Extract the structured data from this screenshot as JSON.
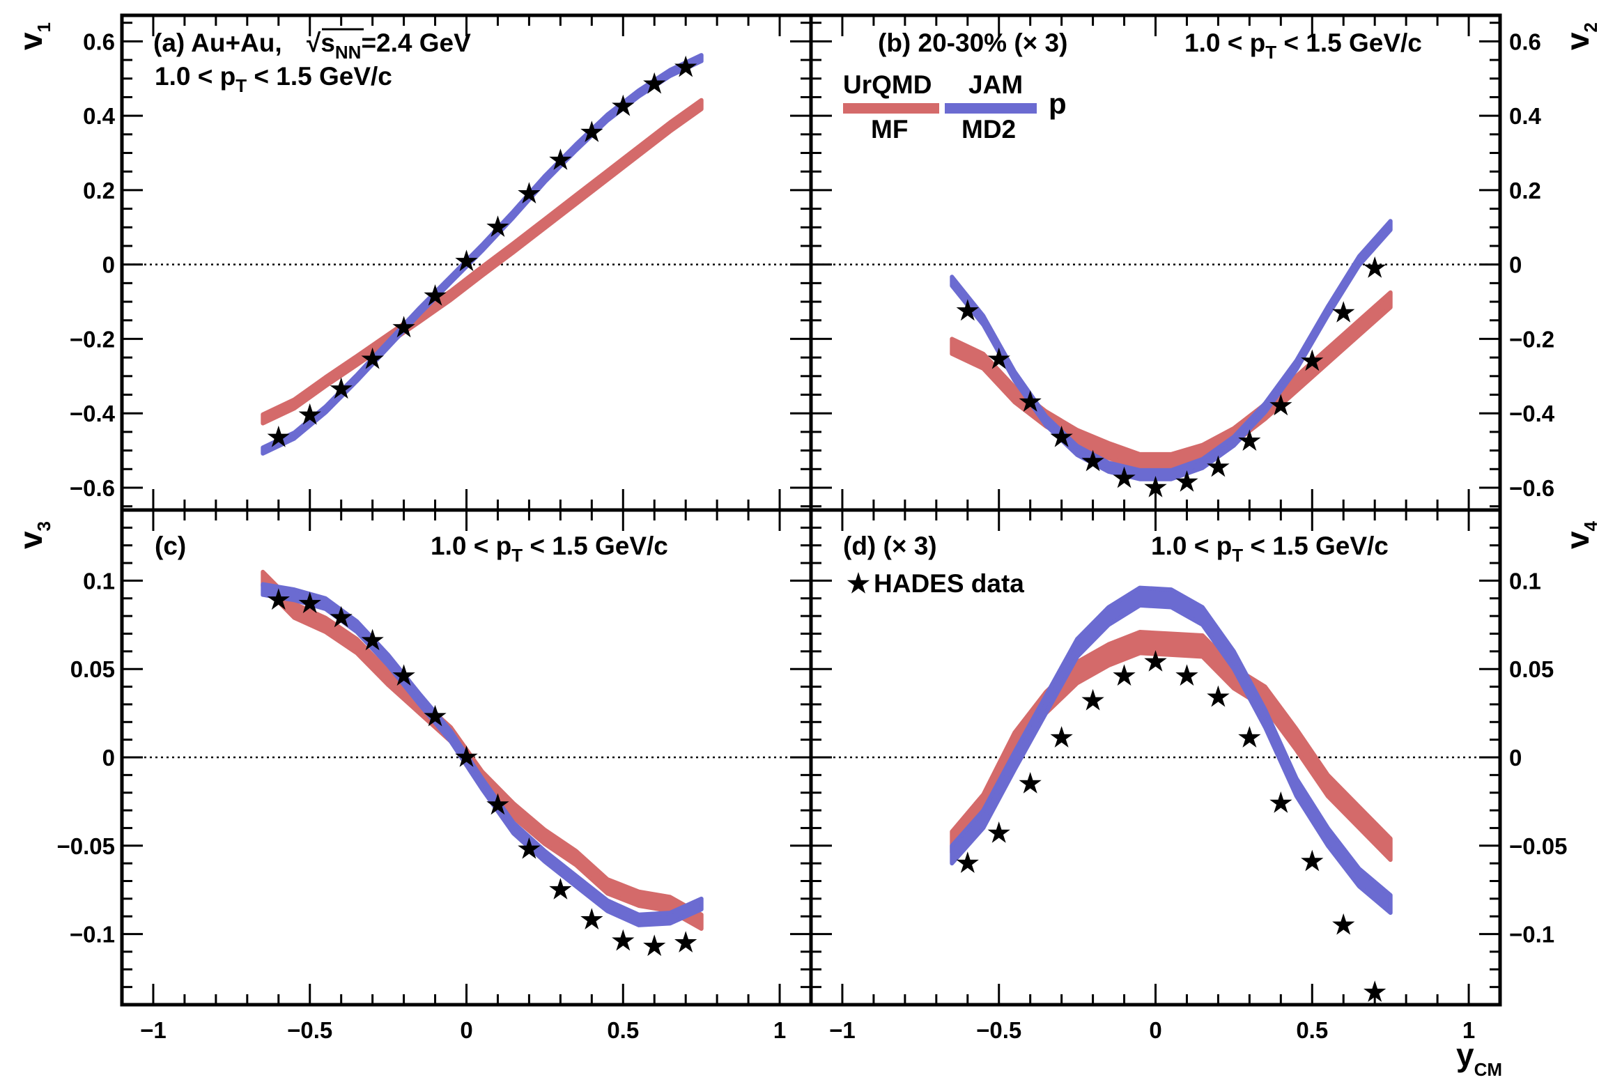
{
  "colors": {
    "urqmd": "#d46a6a",
    "jam": "#6b6bd1",
    "data": "#000000",
    "frame": "#000000",
    "zero_line": "#000000"
  },
  "axes": {
    "x_title": "y",
    "x_title_sub": "CM",
    "x_ticks": [
      "−1",
      "−0.5",
      "0",
      "0.5",
      "1"
    ],
    "left_ticks_top": [
      "0.6",
      "0.4",
      "0.2",
      "0",
      "−0.2",
      "−0.4",
      "−0.6"
    ],
    "left_ticks_bottom": [
      "0.1",
      "0.05",
      "0",
      "−0.05",
      "−0.1"
    ],
    "right_ticks_top": [
      "0.6",
      "0.4",
      "0.2",
      "0",
      "−0.2",
      "−0.4",
      "−0.6"
    ],
    "right_ticks_bottom": [
      "0.1",
      "0.05",
      "0",
      "−0.05",
      "−0.1"
    ],
    "v1": {
      "letter": "v",
      "sub": "1"
    },
    "v2": {
      "letter": "v",
      "sub": "2"
    },
    "v3": {
      "letter": "v",
      "sub": "3"
    },
    "v4": {
      "letter": "v",
      "sub": "4"
    }
  },
  "panel_a": {
    "label": "(a) Au+Au,",
    "sqrt": "√",
    "s": "s",
    "s_sub": "NN",
    "energy": "=2.4 GeV",
    "pt_pre": "1.0 < p",
    "pt_sub": "T",
    "pt_post": " < 1.5 GeV/c"
  },
  "panel_b": {
    "label": "(b)  20-30% (× 3)",
    "pt_pre": "1.0 < p",
    "pt_sub": "T",
    "pt_post": " < 1.5 GeV/c"
  },
  "panel_c": {
    "label": "(c)",
    "pt_pre": "1.0 < p",
    "pt_sub": "T",
    "pt_post": " < 1.5 GeV/c"
  },
  "panel_d": {
    "label": "(d)  (× 3)",
    "pt_pre": "1.0 < p",
    "pt_sub": "T",
    "pt_post": " < 1.5 GeV/c"
  },
  "legend": {
    "urqmd_top": "UrQMD",
    "urqmd_bottom": "MF",
    "jam_top": "JAM",
    "jam_bottom": "MD2",
    "particle": "p",
    "data_label": "HADES data"
  },
  "chart_data": [
    {
      "type": "line",
      "panel": "a",
      "ylabel": "v1",
      "xlabel": "yCM",
      "xlim": [
        -1.1,
        1.1
      ],
      "ylim": [
        -0.66,
        0.67
      ],
      "series": [
        {
          "name": "UrQMD MF",
          "x": [
            -0.65,
            -0.55,
            -0.45,
            -0.35,
            -0.25,
            -0.15,
            -0.05,
            0.05,
            0.15,
            0.25,
            0.35,
            0.45,
            0.55,
            0.65,
            0.75
          ],
          "values": [
            -0.415,
            -0.375,
            -0.315,
            -0.258,
            -0.2,
            -0.142,
            -0.083,
            -0.018,
            0.045,
            0.11,
            0.175,
            0.24,
            0.305,
            0.37,
            0.43
          ],
          "band": 0.012
        },
        {
          "name": "JAM MD2",
          "x": [
            -0.65,
            -0.55,
            -0.45,
            -0.35,
            -0.25,
            -0.15,
            -0.05,
            0.05,
            0.15,
            0.25,
            0.35,
            0.45,
            0.55,
            0.65,
            0.75
          ],
          "values": [
            -0.5,
            -0.46,
            -0.39,
            -0.305,
            -0.215,
            -0.125,
            -0.04,
            0.045,
            0.135,
            0.23,
            0.315,
            0.395,
            0.46,
            0.515,
            0.555
          ],
          "band": 0.008
        },
        {
          "name": "HADES data",
          "x": [
            -0.6,
            -0.5,
            -0.4,
            -0.3,
            -0.2,
            -0.1,
            0.0,
            0.1,
            0.2,
            0.3,
            0.4,
            0.5,
            0.6,
            0.7
          ],
          "values": [
            -0.465,
            -0.405,
            -0.335,
            -0.255,
            -0.17,
            -0.085,
            0.008,
            0.1,
            0.19,
            0.28,
            0.355,
            0.425,
            0.485,
            0.53
          ]
        }
      ]
    },
    {
      "type": "line",
      "panel": "b",
      "ylabel": "v2 (× 3)",
      "xlabel": "yCM",
      "xlim": [
        -1.1,
        1.1
      ],
      "ylim": [
        -0.66,
        0.67
      ],
      "series": [
        {
          "name": "UrQMD MF",
          "x": [
            -0.65,
            -0.55,
            -0.45,
            -0.35,
            -0.25,
            -0.15,
            -0.05,
            0.05,
            0.15,
            0.25,
            0.35,
            0.45,
            0.55,
            0.65,
            0.75
          ],
          "values": [
            -0.22,
            -0.26,
            -0.35,
            -0.415,
            -0.465,
            -0.5,
            -0.53,
            -0.53,
            -0.505,
            -0.46,
            -0.395,
            -0.32,
            -0.245,
            -0.17,
            -0.095
          ],
          "band": 0.02
        },
        {
          "name": "JAM MD2",
          "x": [
            -0.65,
            -0.55,
            -0.45,
            -0.35,
            -0.25,
            -0.15,
            -0.05,
            0.05,
            0.15,
            0.25,
            0.35,
            0.45,
            0.55,
            0.65,
            0.75
          ],
          "values": [
            -0.045,
            -0.15,
            -0.3,
            -0.42,
            -0.5,
            -0.545,
            -0.565,
            -0.565,
            -0.535,
            -0.475,
            -0.385,
            -0.27,
            -0.125,
            0.01,
            0.105
          ],
          "band": 0.012
        },
        {
          "name": "HADES data",
          "x": [
            -0.6,
            -0.5,
            -0.4,
            -0.3,
            -0.2,
            -0.1,
            0.0,
            0.1,
            0.2,
            0.3,
            0.4,
            0.5,
            0.6,
            0.7
          ],
          "values": [
            -0.125,
            -0.255,
            -0.37,
            -0.465,
            -0.53,
            -0.575,
            -0.6,
            -0.585,
            -0.545,
            -0.475,
            -0.38,
            -0.26,
            -0.13,
            -0.01
          ]
        }
      ]
    },
    {
      "type": "line",
      "panel": "c",
      "ylabel": "v3",
      "xlabel": "yCM",
      "xlim": [
        -1.1,
        1.1
      ],
      "ylim": [
        -0.14,
        0.14
      ],
      "series": [
        {
          "name": "UrQMD MF",
          "x": [
            -0.65,
            -0.55,
            -0.45,
            -0.35,
            -0.25,
            -0.15,
            -0.05,
            0.05,
            0.15,
            0.25,
            0.35,
            0.45,
            0.55,
            0.65,
            0.75
          ],
          "values": [
            0.101,
            0.083,
            0.075,
            0.063,
            0.045,
            0.029,
            0.013,
            -0.012,
            -0.03,
            -0.045,
            -0.057,
            -0.073,
            -0.08,
            -0.083,
            -0.093
          ],
          "band": 0.004
        },
        {
          "name": "JAM MD2",
          "x": [
            -0.65,
            -0.55,
            -0.45,
            -0.35,
            -0.25,
            -0.15,
            -0.05,
            0.05,
            0.15,
            0.25,
            0.35,
            0.45,
            0.55,
            0.65,
            0.75
          ],
          "values": [
            0.095,
            0.092,
            0.087,
            0.074,
            0.055,
            0.033,
            0.012,
            -0.015,
            -0.04,
            -0.056,
            -0.07,
            -0.084,
            -0.092,
            -0.091,
            -0.083
          ],
          "band": 0.003
        },
        {
          "name": "HADES data",
          "x": [
            -0.6,
            -0.5,
            -0.4,
            -0.3,
            -0.2,
            -0.1,
            0.0,
            0.1,
            0.2,
            0.3,
            0.4,
            0.5,
            0.6,
            0.7
          ],
          "values": [
            0.089,
            0.087,
            0.079,
            0.066,
            0.046,
            0.023,
            0.0,
            -0.027,
            -0.052,
            -0.075,
            -0.092,
            -0.104,
            -0.107,
            -0.105
          ]
        }
      ]
    },
    {
      "type": "line",
      "panel": "d",
      "ylabel": "v4 (× 3)",
      "xlabel": "yCM",
      "xlim": [
        -1.1,
        1.1
      ],
      "ylim": [
        -0.14,
        0.14
      ],
      "series": [
        {
          "name": "UrQMD MF",
          "x": [
            -0.65,
            -0.55,
            -0.45,
            -0.35,
            -0.25,
            -0.15,
            -0.05,
            0.05,
            0.15,
            0.25,
            0.35,
            0.45,
            0.55,
            0.65,
            0.75
          ],
          "values": [
            -0.048,
            -0.027,
            0.008,
            0.031,
            0.048,
            0.058,
            0.065,
            0.064,
            0.063,
            0.045,
            0.034,
            0.01,
            -0.016,
            -0.034,
            -0.052
          ],
          "band": 0.006
        },
        {
          "name": "JAM MD2",
          "x": [
            -0.65,
            -0.55,
            -0.45,
            -0.35,
            -0.25,
            -0.15,
            -0.05,
            0.05,
            0.15,
            0.25,
            0.35,
            0.45,
            0.55,
            0.65,
            0.75
          ],
          "values": [
            -0.055,
            -0.035,
            -0.002,
            0.03,
            0.062,
            0.08,
            0.091,
            0.09,
            0.08,
            0.055,
            0.022,
            -0.017,
            -0.045,
            -0.068,
            -0.083
          ],
          "band": 0.005
        },
        {
          "name": "HADES data",
          "x": [
            -0.6,
            -0.5,
            -0.4,
            -0.3,
            -0.2,
            -0.1,
            0.0,
            0.1,
            0.2,
            0.3,
            0.4,
            0.5,
            0.6,
            0.7
          ],
          "values": [
            -0.06,
            -0.043,
            -0.015,
            0.011,
            0.032,
            0.046,
            0.054,
            0.046,
            0.034,
            0.011,
            -0.026,
            -0.059,
            -0.095,
            -0.133
          ]
        }
      ]
    }
  ]
}
